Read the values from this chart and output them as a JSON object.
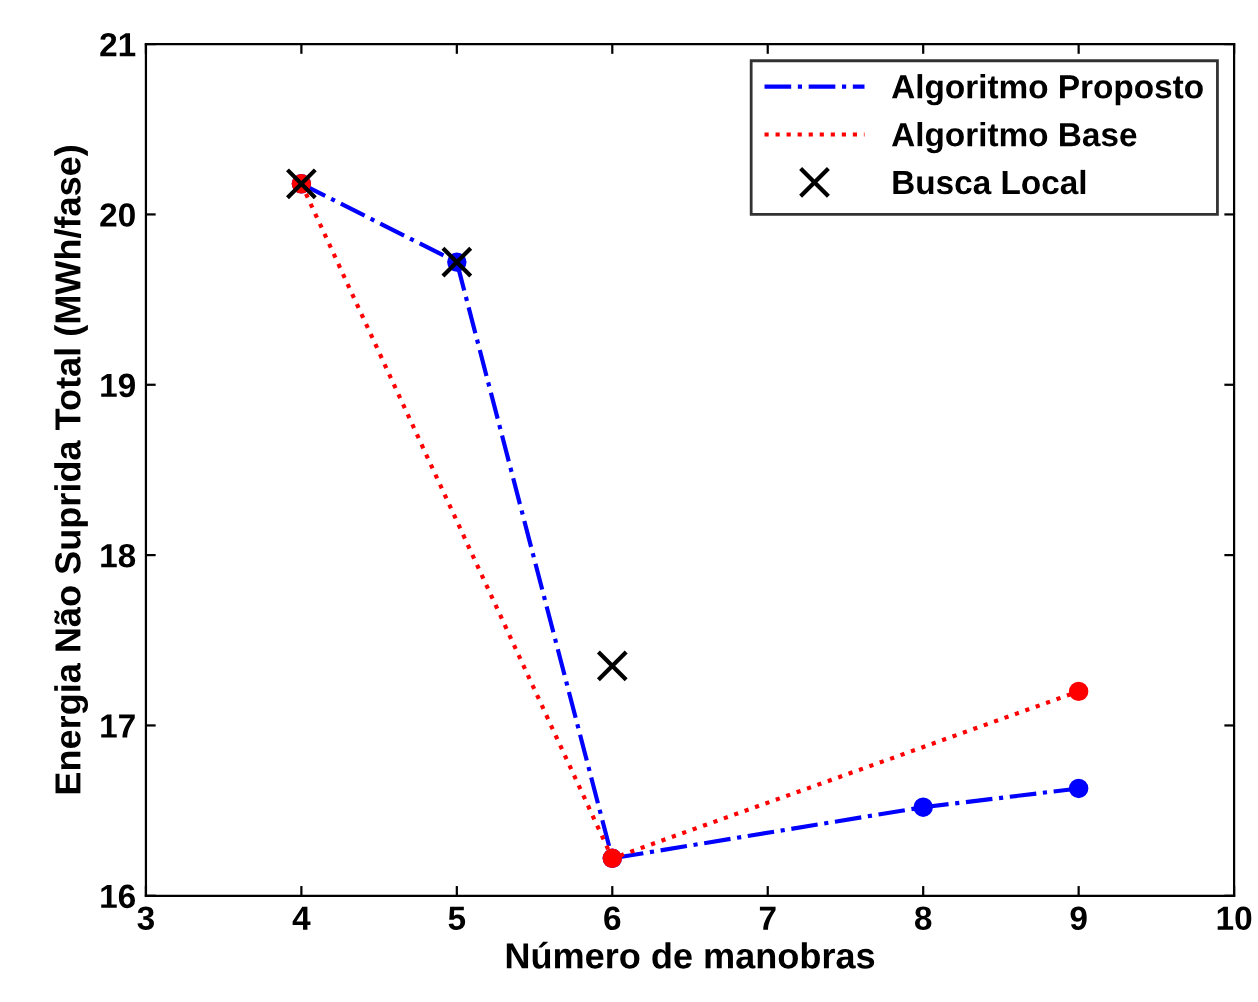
{
  "chart_data": {
    "type": "line",
    "xlabel": "Número de manobras",
    "ylabel": "Energia Não Suprida Total (MWh/fase)",
    "xlim": [
      3,
      10
    ],
    "xticks": [
      3,
      4,
      5,
      6,
      7,
      8,
      9,
      10
    ],
    "ylim": [
      16,
      21
    ],
    "yticks": [
      16,
      17,
      18,
      19,
      20,
      21
    ],
    "grid": false,
    "legend": "top right",
    "series": [
      {
        "name": "Algoritmo Proposto",
        "type": "line",
        "color": "#0000ff",
        "line_style": "dashdot",
        "marker": "circle",
        "x": [
          4,
          5,
          6,
          8,
          9
        ],
        "values": [
          20.18,
          19.72,
          16.22,
          16.52,
          16.63
        ]
      },
      {
        "name": "Algoritmo Base",
        "type": "line",
        "color": "#ff0000",
        "line_style": "dotted",
        "marker": "circle",
        "x": [
          4,
          6,
          9
        ],
        "values": [
          20.18,
          16.22,
          17.2
        ]
      },
      {
        "name": "Busca Local",
        "type": "scatter",
        "color": "#000000",
        "marker": "cross",
        "x": [
          4,
          5,
          6
        ],
        "values": [
          20.18,
          19.72,
          17.35
        ]
      }
    ]
  }
}
